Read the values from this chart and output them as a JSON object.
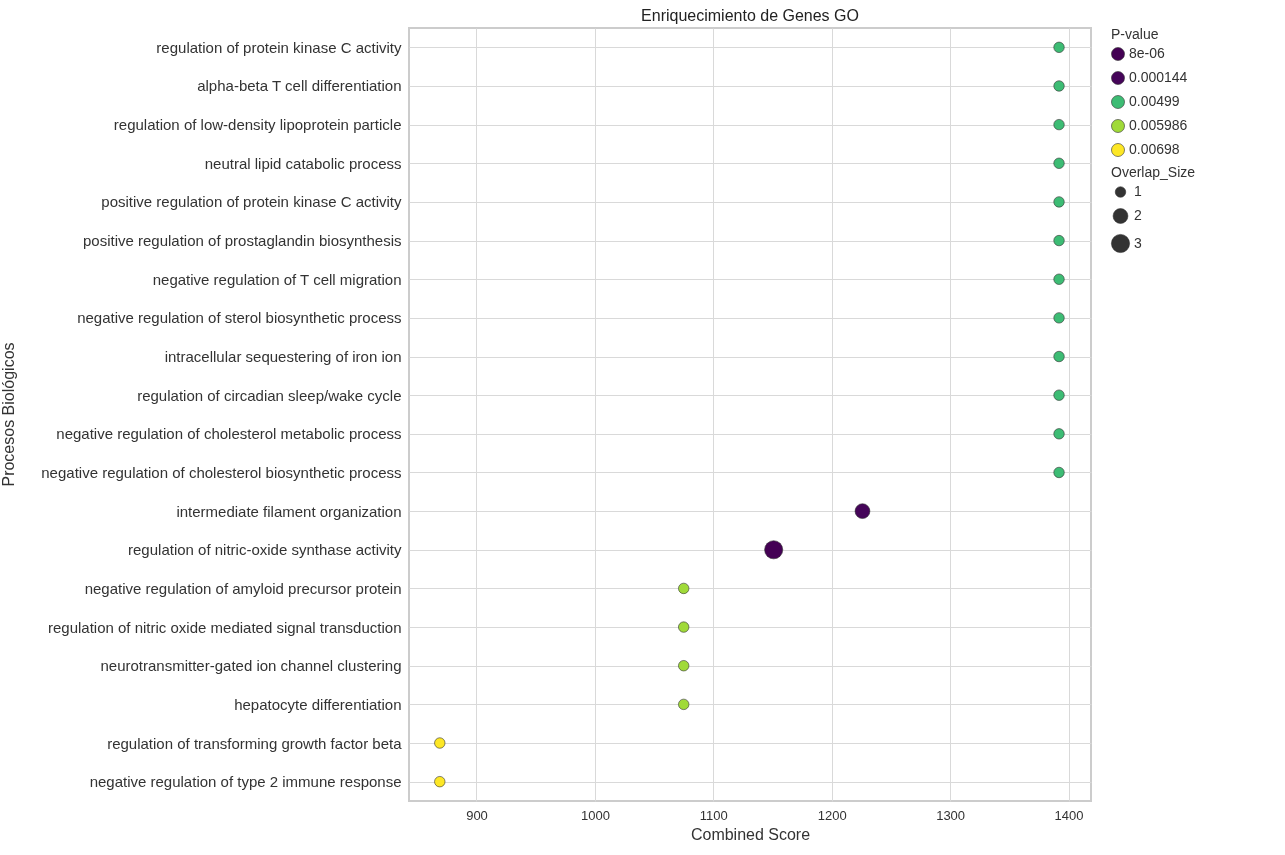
{
  "chart_data": {
    "type": "bubble",
    "title": "Enriquecimiento de Genes GO",
    "xlabel": "Combined Score",
    "ylabel": "Procesos Biológicos",
    "legend_title": "P-value",
    "orientation": "horizontal",
    "categories": [
      "regulation of protein kinase C activity",
      "alpha-beta T cell differentiation",
      "regulation of low-density lipoprotein particle",
      "neutral lipid catabolic process",
      "positive regulation of protein kinase C activity",
      "positive regulation of prostaglandin biosynthesis",
      "negative regulation of T cell migration",
      "negative regulation of sterol biosynthetic process",
      "intracellular sequestering of iron ion",
      "regulation of circadian sleep/wake cycle",
      "negative regulation of cholesterol metabolic process",
      "negative regulation of cholesterol biosynthetic process",
      "intermediate filament organization",
      "regulation of nitric-oxide synthase activity",
      "negative regulation of amyloid precursor protein",
      "regulation of nitric oxide mediated signal transduction",
      "neurotransmitter-gated ion channel clustering",
      "hepatocyte differentiation",
      "regulation of transforming growth factor beta",
      "negative regulation of type 2 immune response"
    ],
    "series": [
      {
        "name": "8e-06",
        "color": "#440154",
        "values": [
          null,
          null,
          null,
          null,
          null,
          null,
          null,
          null,
          null,
          null,
          null,
          null,
          null,
          1151,
          null,
          null,
          null,
          null,
          null,
          null
        ],
        "sizes": [
          null,
          null,
          null,
          null,
          null,
          null,
          null,
          null,
          null,
          null,
          null,
          null,
          null,
          3,
          null,
          null,
          null,
          null,
          null,
          null
        ]
      },
      {
        "name": "0.000144",
        "color": "#450559",
        "values": [
          null,
          null,
          null,
          null,
          null,
          null,
          null,
          null,
          null,
          null,
          null,
          null,
          1226,
          null,
          null,
          null,
          null,
          null,
          null,
          null
        ],
        "sizes": [
          null,
          null,
          null,
          null,
          null,
          null,
          null,
          null,
          null,
          null,
          null,
          null,
          2,
          null,
          null,
          null,
          null,
          null,
          null,
          null
        ]
      },
      {
        "name": "0.00499",
        "color": "#3dbc74",
        "values": [
          1392,
          1392,
          1392,
          1392,
          1392,
          1392,
          1392,
          1392,
          1392,
          1392,
          1392,
          1392,
          null,
          null,
          null,
          null,
          null,
          null,
          null,
          null
        ],
        "sizes": [
          1,
          1,
          1,
          1,
          1,
          1,
          1,
          1,
          1,
          1,
          1,
          1,
          null,
          null,
          null,
          null,
          null,
          null,
          null,
          null
        ]
      },
      {
        "name": "0.005986",
        "color": "#a0da39",
        "values": [
          null,
          null,
          null,
          null,
          null,
          null,
          null,
          null,
          null,
          null,
          null,
          null,
          null,
          null,
          1075,
          1075,
          1075,
          1075,
          null,
          null
        ],
        "sizes": [
          null,
          null,
          null,
          null,
          null,
          null,
          null,
          null,
          null,
          null,
          null,
          null,
          null,
          null,
          1,
          1,
          1,
          1,
          null,
          null
        ]
      },
      {
        "name": "0.00698",
        "color": "#fde725",
        "values": [
          null,
          null,
          null,
          null,
          null,
          null,
          null,
          null,
          null,
          null,
          null,
          null,
          null,
          null,
          null,
          null,
          null,
          null,
          869,
          869
        ],
        "sizes": [
          null,
          null,
          null,
          null,
          null,
          null,
          null,
          null,
          null,
          null,
          null,
          null,
          null,
          null,
          null,
          null,
          null,
          null,
          1,
          1
        ]
      }
    ],
    "size_legend": [
      1,
      2,
      3
    ],
    "annotations": [
      "Overlap_Size"
    ],
    "xlim": [
      843,
      1419
    ],
    "xticks": [
      900,
      1000,
      1100,
      1200,
      1300,
      1400
    ],
    "grid": true,
    "legend": "top right",
    "marker": "circle"
  }
}
